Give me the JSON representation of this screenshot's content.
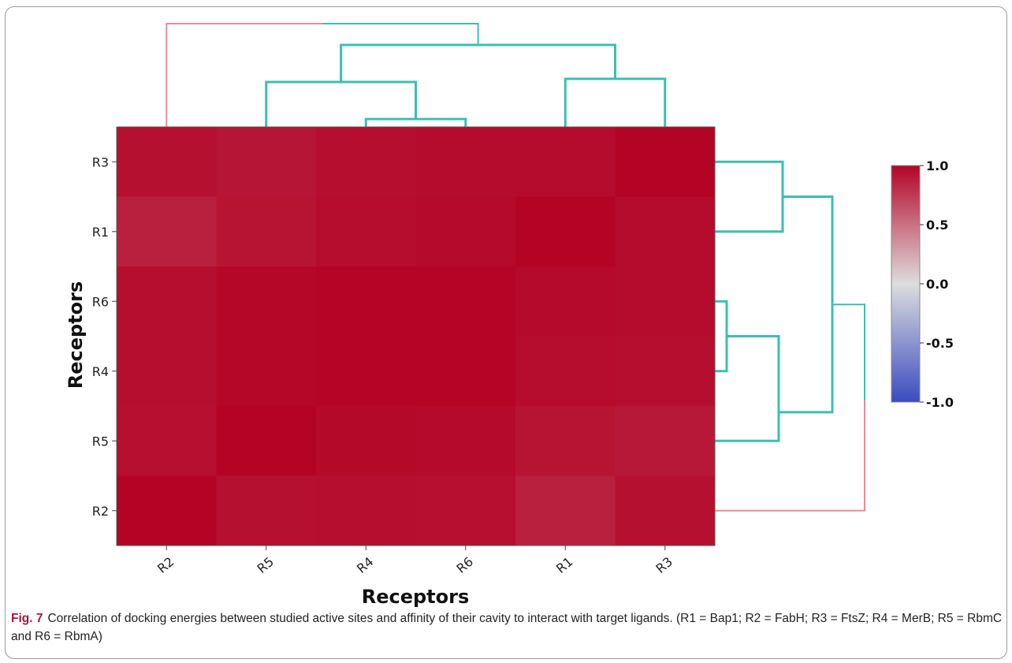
{
  "chart_data": {
    "type": "heatmap",
    "xlabel": "Receptors",
    "ylabel": "Receptors",
    "x_categories": [
      "R2",
      "R5",
      "R4",
      "R6",
      "R1",
      "R3"
    ],
    "y_categories": [
      "R3",
      "R1",
      "R6",
      "R4",
      "R5",
      "R2"
    ],
    "values": [
      [
        0.9,
        0.86,
        0.92,
        0.94,
        0.94,
        1.0
      ],
      [
        0.78,
        0.87,
        0.93,
        0.95,
        1.0,
        0.94
      ],
      [
        0.92,
        0.97,
        0.99,
        0.99,
        0.95,
        0.94
      ],
      [
        0.92,
        0.97,
        0.99,
        0.99,
        0.93,
        0.92
      ],
      [
        0.91,
        1.0,
        0.96,
        0.95,
        0.88,
        0.84
      ],
      [
        1.0,
        0.9,
        0.92,
        0.91,
        0.78,
        0.9
      ]
    ],
    "colorbar": {
      "vmin": -1.0,
      "vmax": 1.0,
      "tick_labels": [
        "1.0",
        "0.5",
        "0.0",
        "-0.5",
        "-1.0"
      ],
      "low_color": "#3a4cc0",
      "mid_color": "#dddddd",
      "high_color": "#b40426"
    },
    "dendrogram_colors": {
      "cluster": "#3bbfb0",
      "root": "#ee8a9c"
    },
    "grid": false,
    "legend": "colorbar-right"
  },
  "caption": {
    "label": "Fig. 7",
    "text": "Correlation of docking energies between studied active sites and affinity of their cavity to interact with target ligands. (R1 = Bap1; R2 = FabH; R3 = FtsZ; R4 = MerB; R5 = RbmC and R6 = RbmA)"
  }
}
